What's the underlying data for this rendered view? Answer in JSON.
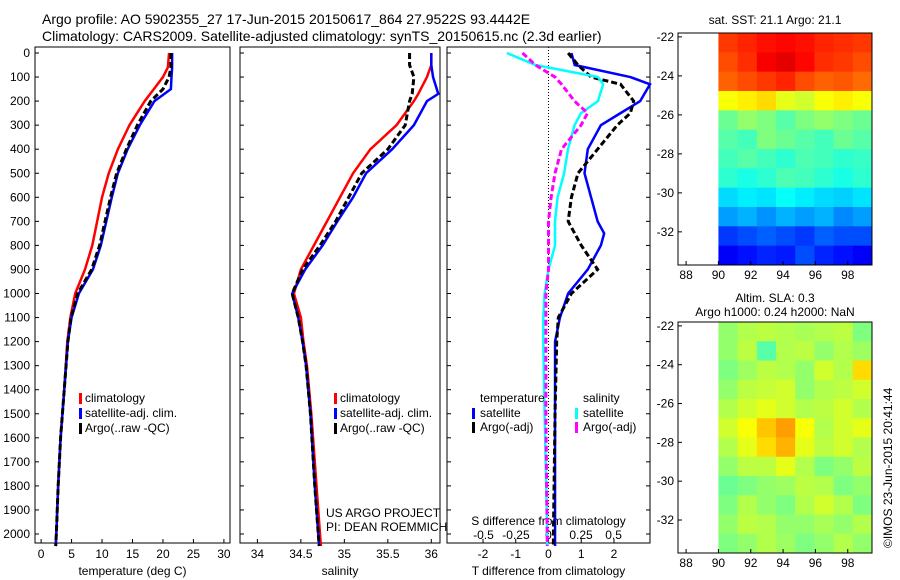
{
  "header": {
    "line1": "Argo profile: AO 5902355_27 17-Jun-2015 20150617_864 27.9522S 93.4442E",
    "line2": "Climatology: CARS2009. Satellite-adjusted climatology: synTS_20150615.nc (2.3d earlier)"
  },
  "credit": "©IMOS 23-Jun-2015 20:41:44",
  "chart_data": [
    {
      "type": "line",
      "id": "temperature",
      "xlabel": "temperature (deg C)",
      "xlim": [
        -1,
        31
      ],
      "ylim": [
        2050,
        -25
      ],
      "xticks": [
        0,
        5,
        10,
        15,
        20,
        25,
        30
      ],
      "yticks": [
        0,
        100,
        200,
        300,
        400,
        500,
        600,
        700,
        800,
        900,
        1000,
        1100,
        1200,
        1300,
        1400,
        1500,
        1600,
        1700,
        1800,
        1900,
        2000
      ],
      "depth": [
        0,
        60,
        100,
        150,
        200,
        300,
        400,
        500,
        600,
        700,
        800,
        900,
        1000,
        1100,
        1200,
        1400,
        1600,
        1800,
        2000,
        2050
      ],
      "series": [
        {
          "name": "climatology",
          "color": "#ff0000",
          "values": [
            21,
            20.8,
            20,
            18.5,
            17,
            14.5,
            12.6,
            11.1,
            10,
            9.2,
            8.4,
            7.2,
            5.6,
            4.8,
            4.3,
            3.8,
            3.2,
            2.8,
            2.5,
            2.4
          ]
        },
        {
          "name": "satellite-adj. clim.",
          "color": "#0000ff",
          "values": [
            21.5,
            21.5,
            21.4,
            21.3,
            18.6,
            16.2,
            14.2,
            12.6,
            11.6,
            10.7,
            9.8,
            8.5,
            6.2,
            5.0,
            4.4,
            3.8,
            3.2,
            2.8,
            2.5,
            2.4
          ]
        },
        {
          "name": "Argo(..raw -QC)",
          "color": "#000000",
          "dash": true,
          "values": [
            21.3,
            21.3,
            21,
            20,
            18,
            15.8,
            14,
            12.4,
            11.4,
            10.5,
            9.6,
            8.3,
            6.0,
            4.9,
            4.4,
            3.8,
            3.2,
            2.8,
            2.5,
            2.4
          ]
        }
      ],
      "legend": [
        "climatology",
        "satellite-adj. clim.",
        "Argo(..raw -QC)"
      ]
    },
    {
      "type": "line",
      "id": "salinity",
      "xlabel": "salinity",
      "xlim": [
        33.8,
        36.1
      ],
      "ylim": [
        2050,
        -25
      ],
      "xticks": [
        34,
        34.5,
        35,
        35.5,
        36
      ],
      "depth": [
        0,
        50,
        100,
        170,
        200,
        300,
        400,
        500,
        600,
        700,
        800,
        900,
        1000,
        1100,
        1200,
        1300,
        1500,
        1800,
        2000,
        2050
      ],
      "series": [
        {
          "name": "climatology",
          "color": "#ff0000",
          "values": [
            36.0,
            36.0,
            35.95,
            35.85,
            35.8,
            35.6,
            35.3,
            35.1,
            34.95,
            34.8,
            34.65,
            34.5,
            34.42,
            34.5,
            34.53,
            34.57,
            34.62,
            34.68,
            34.72,
            34.73
          ]
        },
        {
          "name": "satellite-adj. clim.",
          "color": "#0000ff",
          "values": [
            36.0,
            36.0,
            36.02,
            36.08,
            35.95,
            35.8,
            35.55,
            35.25,
            35.1,
            34.92,
            34.75,
            34.55,
            34.4,
            34.47,
            34.52,
            34.56,
            34.61,
            34.66,
            34.7,
            34.71
          ]
        },
        {
          "name": "Argo(..raw -QC)",
          "color": "#000000",
          "dash": true,
          "values": [
            35.75,
            35.75,
            35.8,
            35.78,
            35.75,
            35.7,
            35.5,
            35.2,
            35.05,
            34.9,
            34.72,
            34.52,
            34.4,
            34.47,
            34.52,
            34.56,
            34.61,
            34.66,
            34.7,
            34.71
          ]
        }
      ],
      "legend": [
        "climatology",
        "satellite-adj. clim.",
        "Argo(..raw -QC)"
      ],
      "annotation": [
        "US ARGO PROJECT",
        "PI: DEAN ROEMMICH"
      ]
    },
    {
      "type": "line",
      "id": "difference",
      "xlabel": "T difference from climatology",
      "x2label": "S difference from climatology",
      "xlim": [
        -3.1,
        3.1
      ],
      "x2lim": [
        -0.78,
        0.78
      ],
      "ylim": [
        2050,
        -25
      ],
      "xticks": [
        -2,
        -1,
        0,
        1,
        2
      ],
      "x2ticks": [
        "-0.5",
        "-0.25",
        "0",
        "0.25",
        "0.5"
      ],
      "x2tickvals": [
        -0.5,
        -0.25,
        0,
        0.25,
        0.5
      ],
      "depth": [
        0,
        50,
        100,
        130,
        200,
        250,
        300,
        400,
        500,
        600,
        700,
        750,
        800,
        900,
        1000,
        1100,
        1200,
        1500,
        2000,
        2050
      ],
      "series": [
        {
          "name": "temperature satellite",
          "axis": "T",
          "color": "#0000ff",
          "values": [
            0.7,
            0.8,
            2.5,
            3.1,
            2.8,
            2.2,
            1.6,
            1.2,
            1.1,
            1.3,
            1.5,
            1.7,
            1.6,
            1.2,
            0.6,
            0.35,
            0.2,
            0.2,
            0.2,
            0.2
          ]
        },
        {
          "name": "temperature Argo(-adj)",
          "axis": "T",
          "color": "#000000",
          "dash": true,
          "values": [
            0.6,
            0.9,
            1.3,
            2.2,
            2.6,
            2.5,
            2.1,
            1.5,
            0.9,
            0.7,
            0.6,
            0.8,
            1.0,
            1.5,
            0.7,
            0.3,
            0.25,
            0.2,
            0.15,
            0.15
          ]
        },
        {
          "name": "salinity satellite",
          "axis": "S",
          "color": "#00ffff",
          "values": [
            -0.32,
            -0.1,
            0.38,
            0.42,
            0.38,
            0.25,
            0.2,
            0.15,
            0.12,
            0.07,
            0.05,
            0.05,
            0.05,
            0.0,
            -0.03,
            -0.04,
            -0.04,
            -0.03,
            -0.01,
            -0.01
          ]
        },
        {
          "name": "salinity Argo(-adj)",
          "axis": "S",
          "color": "#ff00ff",
          "dash": true,
          "values": [
            -0.2,
            -0.1,
            0.05,
            0.1,
            0.2,
            0.3,
            0.25,
            0.1,
            0.05,
            0.02,
            0,
            0,
            0,
            0,
            -0.02,
            -0.02,
            -0.02,
            -0.02,
            -0.01,
            -0.01
          ]
        }
      ],
      "legend_headers": [
        "temperature",
        "salinity"
      ],
      "legend": [
        "satellite",
        "Argo(-adj)",
        "satellite",
        "Argo(-adj)"
      ]
    },
    {
      "type": "heatmap",
      "id": "sst-map",
      "title": "sat. SST: 21.1  Argo: 21.1",
      "xticks": [
        88,
        90,
        92,
        94,
        96,
        98
      ],
      "yticks": [
        -22,
        -24,
        -26,
        -28,
        -30,
        -32
      ],
      "xlim": [
        87.5,
        99.5
      ],
      "ylim": [
        -33.7,
        -21.8
      ],
      "grid": [
        [
          0.82,
          0.84,
          0.86,
          0.87,
          0.86,
          0.84,
          0.83,
          0.82
        ],
        [
          0.8,
          0.83,
          0.88,
          0.9,
          0.87,
          0.83,
          0.82,
          0.8
        ],
        [
          0.78,
          0.8,
          0.82,
          0.84,
          0.8,
          0.78,
          0.79,
          0.77
        ],
        [
          0.62,
          0.64,
          0.66,
          0.6,
          0.58,
          0.62,
          0.64,
          0.62
        ],
        [
          0.48,
          0.52,
          0.5,
          0.46,
          0.5,
          0.52,
          0.5,
          0.48
        ],
        [
          0.46,
          0.44,
          0.5,
          0.48,
          0.46,
          0.44,
          0.48,
          0.46
        ],
        [
          0.44,
          0.46,
          0.44,
          0.42,
          0.45,
          0.44,
          0.42,
          0.43
        ],
        [
          0.42,
          0.4,
          0.42,
          0.45,
          0.44,
          0.42,
          0.4,
          0.42
        ],
        [
          0.34,
          0.36,
          0.35,
          0.38,
          0.36,
          0.34,
          0.33,
          0.35
        ],
        [
          0.28,
          0.3,
          0.27,
          0.3,
          0.28,
          0.3,
          0.26,
          0.28
        ],
        [
          0.18,
          0.2,
          0.22,
          0.2,
          0.18,
          0.22,
          0.2,
          0.2
        ],
        [
          0.12,
          0.14,
          0.16,
          0.15,
          0.2,
          0.16,
          0.14,
          0.12
        ]
      ]
    },
    {
      "type": "heatmap",
      "id": "sla-map",
      "title": "Altim. SLA: 0.3",
      "subtitle": "Argo h1000: 0.24 h2000: NaN",
      "xticks": [
        88,
        90,
        92,
        94,
        96,
        98
      ],
      "yticks": [
        -22,
        -24,
        -26,
        -28,
        -30,
        -32
      ],
      "xlim": [
        87.5,
        99.5
      ],
      "ylim": [
        -33.7,
        -21.8
      ],
      "grid": [
        [
          0.52,
          0.55,
          0.56,
          0.55,
          0.54,
          0.55,
          0.56,
          0.5
        ],
        [
          0.52,
          0.56,
          0.46,
          0.55,
          0.56,
          0.52,
          0.55,
          0.53
        ],
        [
          0.5,
          0.53,
          0.56,
          0.55,
          0.52,
          0.58,
          0.55,
          0.66
        ],
        [
          0.52,
          0.56,
          0.57,
          0.58,
          0.52,
          0.55,
          0.56,
          0.58
        ],
        [
          0.55,
          0.58,
          0.6,
          0.58,
          0.55,
          0.56,
          0.58,
          0.55
        ],
        [
          0.58,
          0.62,
          0.68,
          0.72,
          0.62,
          0.55,
          0.58,
          0.6
        ],
        [
          0.55,
          0.6,
          0.66,
          0.7,
          0.6,
          0.56,
          0.58,
          0.55
        ],
        [
          0.52,
          0.56,
          0.56,
          0.6,
          0.55,
          0.5,
          0.52,
          0.56
        ],
        [
          0.48,
          0.5,
          0.52,
          0.53,
          0.56,
          0.55,
          0.5,
          0.52
        ],
        [
          0.5,
          0.55,
          0.52,
          0.5,
          0.55,
          0.58,
          0.55,
          0.5
        ],
        [
          0.52,
          0.56,
          0.55,
          0.52,
          0.52,
          0.54,
          0.52,
          0.55
        ],
        [
          0.5,
          0.52,
          0.55,
          0.53,
          0.5,
          0.52,
          0.55,
          0.52
        ]
      ]
    }
  ]
}
